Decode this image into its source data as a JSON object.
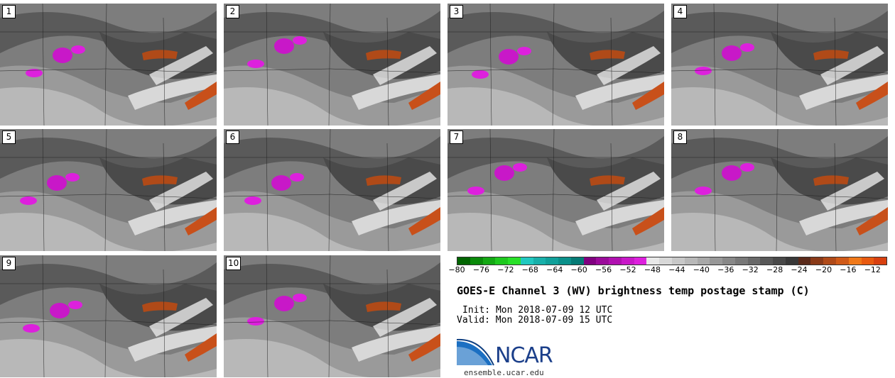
{
  "panels": [
    {
      "label": "1"
    },
    {
      "label": "2"
    },
    {
      "label": "3"
    },
    {
      "label": "4"
    },
    {
      "label": "5"
    },
    {
      "label": "6"
    },
    {
      "label": "7"
    },
    {
      "label": "8"
    },
    {
      "label": "9"
    },
    {
      "label": "10"
    }
  ],
  "colorbar": {
    "colors": [
      "#006400",
      "#0a8a0a",
      "#14a814",
      "#1ec81e",
      "#28e028",
      "#20c8c0",
      "#18b0aa",
      "#10a09a",
      "#0a908a",
      "#057a75",
      "#800080",
      "#9a0a9a",
      "#b010b0",
      "#c818c8",
      "#dd20dd",
      "#e8e8e8",
      "#d8d8d8",
      "#c8c8c8",
      "#b8b8b8",
      "#a8a8a8",
      "#989898",
      "#888888",
      "#787878",
      "#686868",
      "#585858",
      "#484848",
      "#383838",
      "#5a2a1a",
      "#8a3a18",
      "#b04a18",
      "#d05a18",
      "#f07818",
      "#e85a10",
      "#d84010"
    ],
    "ticks": [
      "−80",
      "−76",
      "−72",
      "−68",
      "−64",
      "−60",
      "−56",
      "−52",
      "−48",
      "−44",
      "−40",
      "−36",
      "−32",
      "−28",
      "−24",
      "−20",
      "−16",
      "−12"
    ]
  },
  "title": "GOES-E Channel 3 (WV) brightness temp postage stamp (C)",
  "init": "Init: Mon 2018-07-09 12 UTC",
  "valid": "Valid: Mon 2018-07-09 15 UTC",
  "logo": {
    "name": "NCAR",
    "url": "ensemble.ucar.edu"
  }
}
